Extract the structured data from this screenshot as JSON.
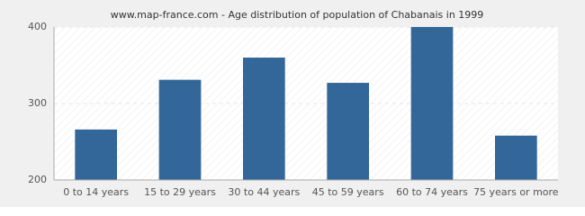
{
  "chart_data": {
    "type": "bar",
    "title": "www.map-france.com - Age distribution of population of Chabanais in 1999",
    "categories": [
      "0 to 14 years",
      "15 to 29 years",
      "30 to 44 years",
      "45 to 59 years",
      "60 to 74 years",
      "75 years or more"
    ],
    "values": [
      266,
      331,
      360,
      327,
      400,
      258
    ],
    "color": "#336699",
    "ylim": [
      200,
      400
    ],
    "yticks": [
      200,
      300,
      400
    ],
    "grid": true
  }
}
